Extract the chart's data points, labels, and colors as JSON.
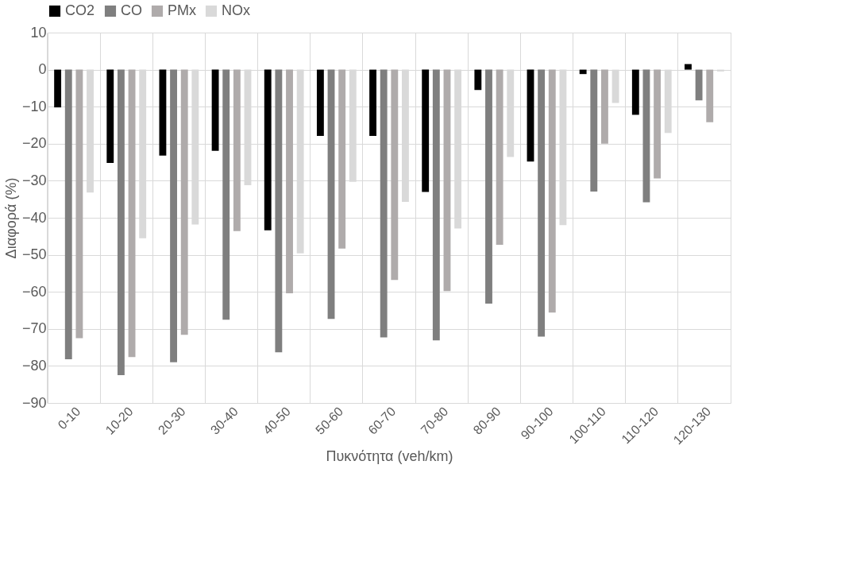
{
  "chart_data": {
    "type": "bar",
    "xlabel": "Πυκνότητα (veh/km)",
    "ylabel": "Διαφορά (%)",
    "categories": [
      "0-10",
      "10-20",
      "20-30",
      "30-40",
      "40-50",
      "50-60",
      "60-70",
      "70-80",
      "80-90",
      "90-100",
      "100-110",
      "110-120",
      "120-130"
    ],
    "series": [
      {
        "name": "CO2",
        "color": "#000000",
        "values": [
          -10.2,
          -25.2,
          -23.2,
          -21.9,
          -43.4,
          -17.9,
          -17.9,
          -33.0,
          -5.5,
          -24.8,
          -1.2,
          -12.2,
          1.5
        ]
      },
      {
        "name": "CO",
        "color": "#7f7f7f",
        "values": [
          -78.2,
          -82.5,
          -79.0,
          -67.5,
          -76.3,
          -67.3,
          -72.3,
          -73.1,
          -63.2,
          -72.1,
          -32.9,
          -35.8,
          -8.3
        ]
      },
      {
        "name": "PMx",
        "color": "#afabab",
        "values": [
          -72.5,
          -77.6,
          -71.6,
          -43.6,
          -60.4,
          -48.3,
          -56.8,
          -59.8,
          -47.3,
          -65.6,
          -20.0,
          -29.4,
          -14.2
        ]
      },
      {
        "name": "NOx",
        "color": "#d9d9d9",
        "values": [
          -33.2,
          -45.5,
          -41.8,
          -31.2,
          -49.6,
          -30.3,
          -35.7,
          -42.9,
          -23.6,
          -42.0,
          -9.0,
          -17.1,
          -0.5
        ]
      }
    ],
    "ylim": [
      -90,
      10
    ],
    "yticks": [
      -90,
      -80,
      -70,
      -60,
      -50,
      -40,
      -30,
      -20,
      -10,
      0,
      10
    ],
    "grid": true,
    "legend": "top"
  }
}
